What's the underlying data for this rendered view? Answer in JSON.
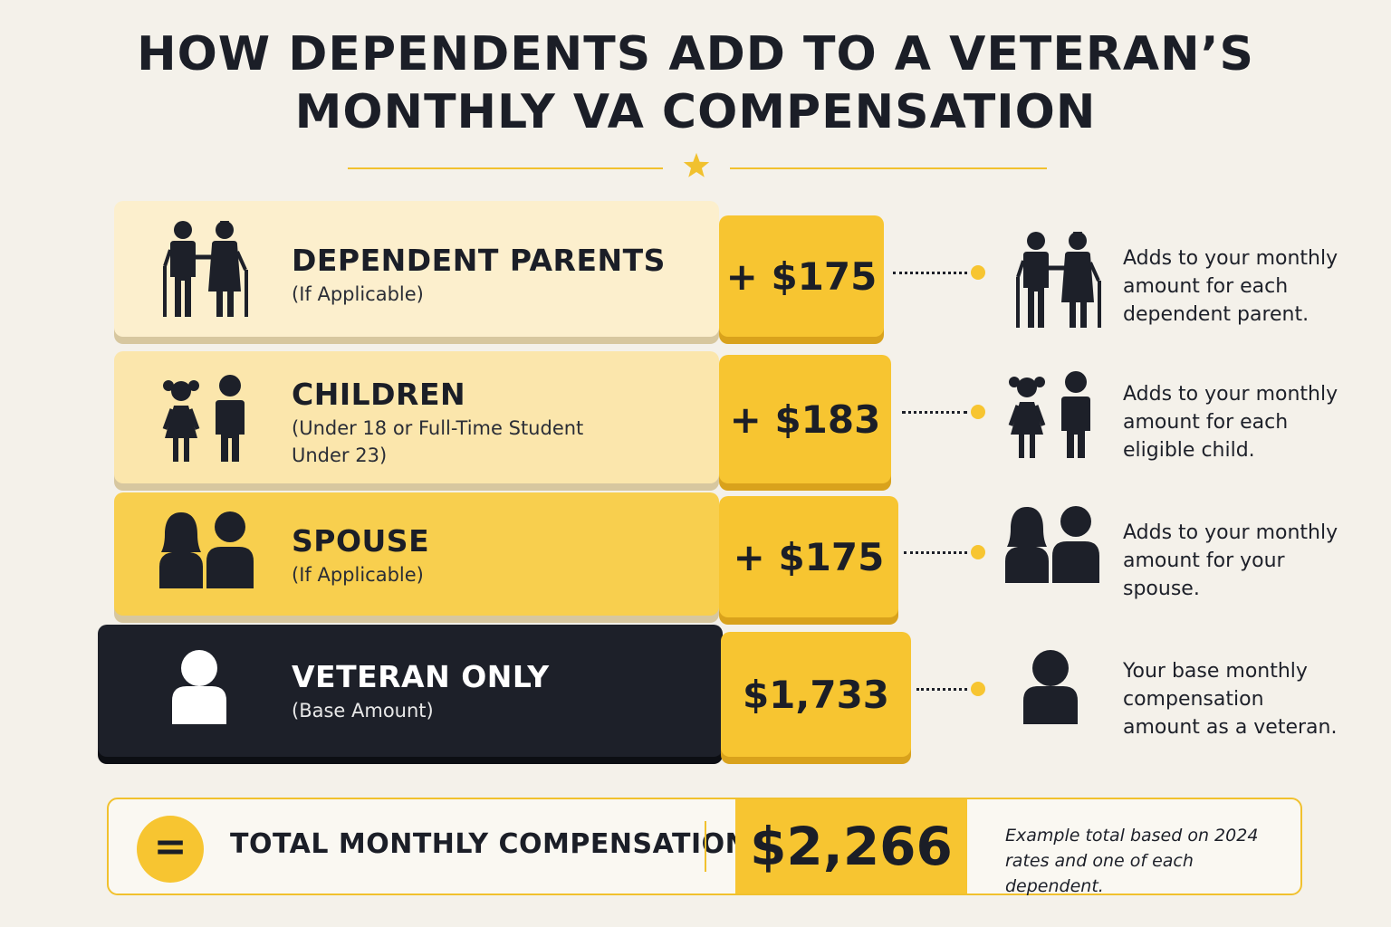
{
  "title": {
    "line1": "HOW DEPENDENTS ADD TO A VETERAN’S",
    "line2": "MONTHLY VA COMPENSATION"
  },
  "tiers": [
    {
      "name": "DEPENDENT PARENTS",
      "sub": "(If Applicable)",
      "value": "+ $175",
      "description": "Adds to your monthly amount for each dependent parent.",
      "icon": "parents-icon"
    },
    {
      "name": "CHILDREN",
      "sub": "(Under 18 or Full-Time Student Under 23)",
      "value": "+ $183",
      "description": "Adds to your monthly amount for each eligible child.",
      "icon": "children-icon"
    },
    {
      "name": "SPOUSE",
      "sub": "(If Applicable)",
      "value": "+ $175",
      "description": "Adds to your monthly amount for your spouse.",
      "icon": "spouse-icon"
    },
    {
      "name": "VETERAN ONLY",
      "sub": "(Base Amount)",
      "value": "$1,733",
      "description": "Your base monthly compensation amount as a veteran.",
      "icon": "veteran-icon"
    }
  ],
  "total": {
    "symbol": "=",
    "label": "TOTAL MONTHLY COMPENSATION",
    "amount": "$2,266",
    "note": "Example total based on 2024 rates and one of each dependent."
  },
  "colors": {
    "accent": "#f7c531",
    "dark": "#1d2029",
    "background": "#f4f1ea"
  }
}
